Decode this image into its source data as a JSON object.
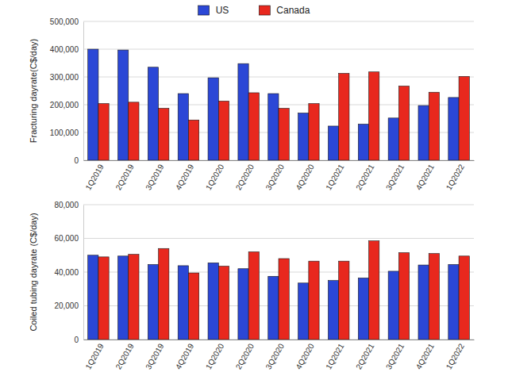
{
  "chart_data": [
    {
      "type": "bar",
      "y_label": "Fracturing dayrate(C$/day)",
      "categories": [
        "1Q2019",
        "2Q2019",
        "3Q2019",
        "4Q2019",
        "1Q2020",
        "2Q2020",
        "3Q2020",
        "4Q2020",
        "1Q2021",
        "2Q2021",
        "3Q2021",
        "4Q2021",
        "1Q2022"
      ],
      "series": [
        {
          "name": "US",
          "color": "#2b47d6",
          "values": [
            400000,
            397000,
            335000,
            240000,
            297000,
            348000,
            240000,
            170000,
            123000,
            130000,
            152000,
            197000,
            226000
          ]
        },
        {
          "name": "Canada",
          "color": "#e8281e",
          "values": [
            204000,
            209000,
            187000,
            145000,
            213000,
            243000,
            187000,
            204000,
            313000,
            318000,
            267000,
            245000,
            302000
          ]
        }
      ],
      "ylim": [
        0,
        500000
      ],
      "yticks": [
        0,
        {
          "value": 100000,
          "label": "100,000"
        },
        {
          "value": 200000,
          "label": "200,000"
        },
        {
          "value": 300000,
          "label": "300,000"
        },
        {
          "value": 400000,
          "label": "400,000"
        },
        {
          "value": 500000,
          "label": "500,000"
        }
      ],
      "grid": true,
      "legend": "top"
    },
    {
      "type": "bar",
      "y_label": "Coiled tubing dayrate (C$/day)",
      "categories": [
        "1Q2019",
        "2Q2019",
        "3Q2019",
        "4Q2019",
        "1Q2020",
        "2Q2020",
        "3Q2020",
        "4Q2020",
        "1Q2021",
        "2Q2021",
        "3Q2021",
        "4Q2021",
        "1Q2022"
      ],
      "series": [
        {
          "color": "#2b47d6",
          "values": [
            50000,
            49500,
            44500,
            43800,
            45500,
            42000,
            37500,
            33500,
            35000,
            36500,
            40500,
            44200,
            44500
          ]
        },
        {
          "color": "#e8281e",
          "values": [
            49000,
            50500,
            54000,
            39500,
            43500,
            52000,
            48000,
            46500,
            46500,
            58500,
            51500,
            51000,
            49500
          ]
        }
      ],
      "ylim": [
        0,
        80000
      ],
      "yticks": [
        0,
        {
          "value": 20000,
          "label": "20,000"
        },
        {
          "value": 40000,
          "label": "40,000"
        },
        {
          "value": 60000,
          "label": "60,000"
        },
        {
          "value": 80000,
          "label": "80,000"
        }
      ],
      "grid": true
    }
  ]
}
